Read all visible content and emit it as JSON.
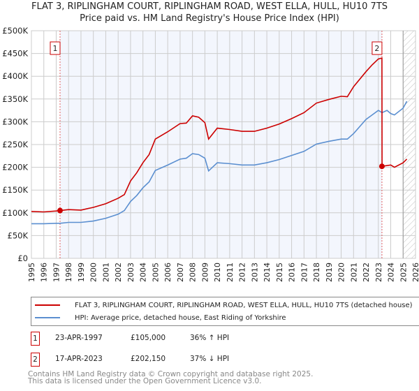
{
  "chart_data": {
    "type": "line",
    "title": "FLAT 3, RIPLINGHAM COURT, RIPLINGHAM ROAD, WEST ELLA, HULL, HU10 7TS",
    "subtitle": "Price paid vs. HM Land Registry's House Price Index (HPI)",
    "xlim": [
      1995,
      2026
    ],
    "ylim": [
      0,
      500000
    ],
    "x_ticks": [
      "1995",
      "1996",
      "1997",
      "1998",
      "1999",
      "2000",
      "2001",
      "2002",
      "2003",
      "2004",
      "2005",
      "2006",
      "2007",
      "2008",
      "2009",
      "2010",
      "2011",
      "2012",
      "2013",
      "2014",
      "2015",
      "2016",
      "2017",
      "2018",
      "2019",
      "2020",
      "2021",
      "2022",
      "2023",
      "2024",
      "2025",
      "2026"
    ],
    "y_ticks": [
      {
        "v": 0,
        "label": "£0"
      },
      {
        "v": 50000,
        "label": "£50K"
      },
      {
        "v": 100000,
        "label": "£100K"
      },
      {
        "v": 150000,
        "label": "£150K"
      },
      {
        "v": 200000,
        "label": "£200K"
      },
      {
        "v": 250000,
        "label": "£250K"
      },
      {
        "v": 300000,
        "label": "£300K"
      },
      {
        "v": 350000,
        "label": "£350K"
      },
      {
        "v": 400000,
        "label": "£400K"
      },
      {
        "v": 450000,
        "label": "£450K"
      },
      {
        "v": 500000,
        "label": "£500K"
      }
    ],
    "series": [
      {
        "name": "FLAT 3, RIPLINGHAM COURT, RIPLINGHAM ROAD, WEST ELLA, HULL, HU10 7TS (detached house)",
        "color": "#cc0000",
        "x": [
          1995,
          1996,
          1997,
          1997.31,
          1998,
          1999,
          2000,
          2001,
          2002,
          2002.5,
          2003,
          2003.5,
          2004,
          2004.5,
          2005,
          2006,
          2007,
          2007.5,
          2008,
          2008.5,
          2009,
          2009.3,
          2010,
          2011,
          2012,
          2013,
          2014,
          2015,
          2016,
          2017,
          2018,
          2019,
          2020,
          2020.5,
          2021,
          2022,
          2022.5,
          2023,
          2023.29,
          2023.3,
          2024,
          2024.3,
          2025,
          2025.3
        ],
        "y": [
          103000,
          102000,
          104000,
          105000,
          107000,
          106000,
          112000,
          120000,
          132000,
          140000,
          170000,
          188000,
          210000,
          228000,
          262000,
          278000,
          296000,
          297000,
          313000,
          310000,
          298000,
          262000,
          286000,
          283000,
          279000,
          279000,
          286000,
          295000,
          307000,
          320000,
          341000,
          349000,
          356000,
          355000,
          377000,
          410000,
          425000,
          438000,
          440000,
          202150,
          205000,
          200000,
          210000,
          218000
        ]
      },
      {
        "name": "HPI: Average price, detached house, East Riding of Yorkshire",
        "color": "#5b8fd0",
        "x": [
          1995,
          1996,
          1997,
          1997.31,
          1998,
          1999,
          2000,
          2001,
          2002,
          2002.5,
          2003,
          2003.5,
          2004,
          2004.5,
          2005,
          2006,
          2007,
          2007.5,
          2008,
          2008.5,
          2009,
          2009.3,
          2010,
          2011,
          2012,
          2013,
          2014,
          2015,
          2016,
          2017,
          2018,
          2019,
          2020,
          2020.5,
          2021,
          2022,
          2022.5,
          2023,
          2023.3,
          2023.7,
          2024,
          2024.3,
          2025,
          2025.3
        ],
        "y": [
          76000,
          76000,
          77000,
          77000,
          79000,
          79000,
          82000,
          88000,
          97000,
          105000,
          125000,
          138000,
          155000,
          168000,
          193000,
          205000,
          218000,
          220000,
          230000,
          228000,
          220000,
          192000,
          210000,
          208000,
          205000,
          205000,
          210000,
          217000,
          226000,
          235000,
          251000,
          257000,
          262000,
          262000,
          274000,
          305000,
          315000,
          325000,
          320000,
          325000,
          318000,
          315000,
          330000,
          345000
        ]
      }
    ],
    "annotations": [
      {
        "label": "1",
        "x": 1997.31,
        "y": 105000
      },
      {
        "label": "2",
        "x": 2023.29,
        "y": 202150
      }
    ],
    "legend": "below"
  },
  "legend": {
    "red_label": "FLAT 3, RIPLINGHAM COURT, RIPLINGHAM ROAD, WEST ELLA, HULL, HU10 7TS (detached house)",
    "blue_label": "HPI: Average price, detached house, East Riding of Yorkshire"
  },
  "transactions": [
    {
      "num": "1",
      "date": "23-APR-1997",
      "price": "£105,000",
      "hpi": "36% ↑ HPI"
    },
    {
      "num": "2",
      "date": "17-APR-2023",
      "price": "£202,150",
      "hpi": "37% ↓ HPI"
    }
  ],
  "footer": {
    "line1": "Contains HM Land Registry data © Crown copyright and database right 2025.",
    "line2": "This data is licensed under the Open Government Licence v3.0."
  }
}
